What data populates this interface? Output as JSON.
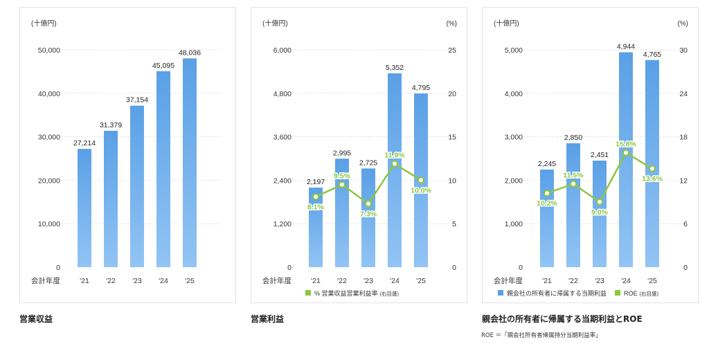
{
  "colors": {
    "bar_top": "#5aa0e6",
    "bar_bottom": "#92c4f4",
    "line": "#8dc63f",
    "grid": "#d6d6d6"
  },
  "chart_data": [
    {
      "type": "bar",
      "title": "営業収益",
      "unit_left": "(十億円)",
      "xlabel": "会計年度",
      "categories": [
        "'21",
        "'22",
        "'23",
        "'24",
        "'25"
      ],
      "values": [
        27214,
        31379,
        37154,
        45095,
        48036
      ],
      "value_labels": [
        "27,214",
        "31,379",
        "37,154",
        "45,095",
        "48,036"
      ],
      "ylim": [
        0,
        50000
      ],
      "yticks": [
        "0",
        "10,000",
        "20,000",
        "30,000",
        "40,000",
        "50,000"
      ],
      "grid": true
    },
    {
      "type": "bar",
      "title": "営業利益",
      "unit_left": "(十億円)",
      "unit_right": "(%)",
      "xlabel": "会計年度",
      "categories": [
        "'21",
        "'22",
        "'23",
        "'24",
        "'25"
      ],
      "values": [
        2197,
        2995,
        2725,
        5352,
        4795
      ],
      "value_labels": [
        "2,197",
        "2,995",
        "2,725",
        "5,352",
        "4,795"
      ],
      "ylim": [
        0,
        6000
      ],
      "yticks": [
        "0",
        "1,200",
        "2,400",
        "3,600",
        "4,800",
        "6,000"
      ],
      "line_series": {
        "values": [
          8.1,
          9.5,
          7.3,
          11.9,
          10.0
        ],
        "value_labels": [
          "8.1%",
          "9.5%",
          "7.3%",
          "11.9%",
          "10.0%"
        ],
        "ylim": [
          0,
          25
        ],
        "yticks": [
          "0",
          "5",
          "10",
          "15",
          "20",
          "25"
        ]
      },
      "legend": [
        {
          "label": "% 営業収益営業利益率",
          "note": "(右目盛)",
          "kind": "line"
        }
      ],
      "grid": true
    },
    {
      "type": "bar",
      "title": "親会社の所有者に帰属する当期利益とROE",
      "unit_left": "(十億円)",
      "unit_right": "(%)",
      "xlabel": "会計年度",
      "categories": [
        "'21",
        "'22",
        "'23",
        "'24",
        "'25"
      ],
      "values": [
        2245,
        2850,
        2451,
        4944,
        4765
      ],
      "value_labels": [
        "2,245",
        "2,850",
        "2,451",
        "4,944",
        "4,765"
      ],
      "ylim": [
        0,
        5000
      ],
      "yticks": [
        "0",
        "1,000",
        "2,000",
        "3,000",
        "4,000",
        "5,000"
      ],
      "line_series": {
        "values": [
          10.2,
          11.5,
          9.0,
          15.8,
          13.6
        ],
        "value_labels": [
          "10.2%",
          "11.5%",
          "9.0%",
          "15.8%",
          "13.6%"
        ],
        "ylim": [
          0,
          30
        ],
        "yticks": [
          "0",
          "6",
          "12",
          "18",
          "24",
          "30"
        ]
      },
      "legend": [
        {
          "label": "親会社の所有者に帰属する当期利益",
          "note": "",
          "kind": "bar"
        },
        {
          "label": "ROE",
          "note": "(右目盛)",
          "kind": "line"
        }
      ],
      "grid": true
    }
  ],
  "captions": [
    "営業収益",
    "営業利益",
    "親会社の所有者に帰属する当期利益とROE"
  ],
  "footnote": "ROE ＝「親会社所有者帰属持分当期利益率」"
}
